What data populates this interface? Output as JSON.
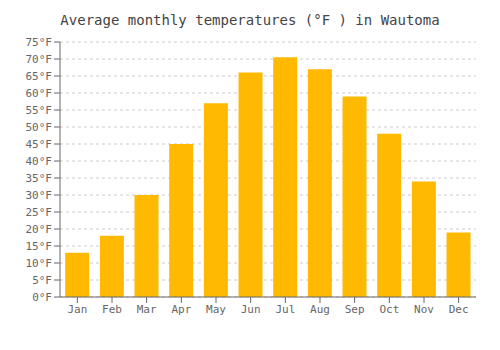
{
  "chart_data": {
    "type": "bar",
    "title": "Average monthly temperatures (°F ) in Wautoma",
    "categories": [
      "Jan",
      "Feb",
      "Mar",
      "Apr",
      "May",
      "Jun",
      "Jul",
      "Aug",
      "Sep",
      "Oct",
      "Nov",
      "Dec"
    ],
    "values": [
      13,
      18,
      30,
      45,
      57,
      66,
      70.5,
      67,
      59,
      48,
      34,
      19
    ],
    "color": "#FFB900",
    "ylim": [
      0,
      75
    ],
    "yticks": [
      {
        "value": 0,
        "label": "0°F"
      },
      {
        "value": 5,
        "label": "5°F"
      },
      {
        "value": 10,
        "label": "10°F"
      },
      {
        "value": 15,
        "label": "15°F"
      },
      {
        "value": 20,
        "label": "20°F"
      },
      {
        "value": 25,
        "label": "25°F"
      },
      {
        "value": 30,
        "label": "30°F"
      },
      {
        "value": 35,
        "label": "35°F"
      },
      {
        "value": 40,
        "label": "40°F"
      },
      {
        "value": 45,
        "label": "45°F"
      },
      {
        "value": 50,
        "label": "50°F"
      },
      {
        "value": 55,
        "label": "55°F"
      },
      {
        "value": 60,
        "label": "60°F"
      },
      {
        "value": 65,
        "label": "65°F"
      },
      {
        "value": 70,
        "label": "70°F"
      },
      {
        "value": 75,
        "label": "75°F"
      }
    ],
    "grid": true
  }
}
